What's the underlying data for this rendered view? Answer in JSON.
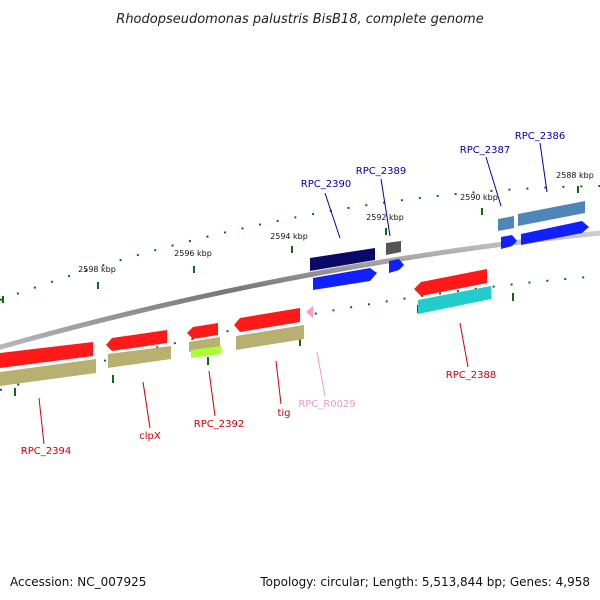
{
  "title": "Rhodopseudomonas palustris BisB18, complete genome",
  "footer": {
    "accession": "Accession: NC_007925",
    "topology": "Topology: circular; Length: 5,513,844 bp; Genes: 4,958"
  },
  "scale_labels": [
    "2598 kbp",
    "2596 kbp",
    "2594 kbp",
    "2592 kbp",
    "2590 kbp",
    "2588 kbp"
  ],
  "colors": {
    "gene_red": "#ff1a1a",
    "feature_olive": "#b8b070",
    "feature_lime": "#aaff33",
    "feature_cyan": "#22cccc",
    "gene_blue": "#1020ff",
    "gene_navy": "#0a0a66",
    "gene_steel": "#4f86b8",
    "feature_gray": "#555555",
    "rna_pink": "#ff99cc",
    "label_red": "#cc0000",
    "label_blue": "#0000aa",
    "label_pink": "#ee99cc",
    "tick_green": "#116611",
    "backbone": "#888888"
  },
  "genes": [
    {
      "label": "RPC_2394",
      "strand": "reverse"
    },
    {
      "label": "clpX",
      "strand": "reverse"
    },
    {
      "label": "RPC_2392",
      "strand": "reverse"
    },
    {
      "label": "tig",
      "strand": "reverse"
    },
    {
      "label": "RPC_R0029",
      "strand": "reverse"
    },
    {
      "label": "RPC_2390",
      "strand": "forward"
    },
    {
      "label": "RPC_2389",
      "strand": "forward"
    },
    {
      "label": "RPC_2388",
      "strand": "reverse"
    },
    {
      "label": "RPC_2387",
      "strand": "forward"
    },
    {
      "label": "RPC_2386",
      "strand": "forward"
    }
  ]
}
